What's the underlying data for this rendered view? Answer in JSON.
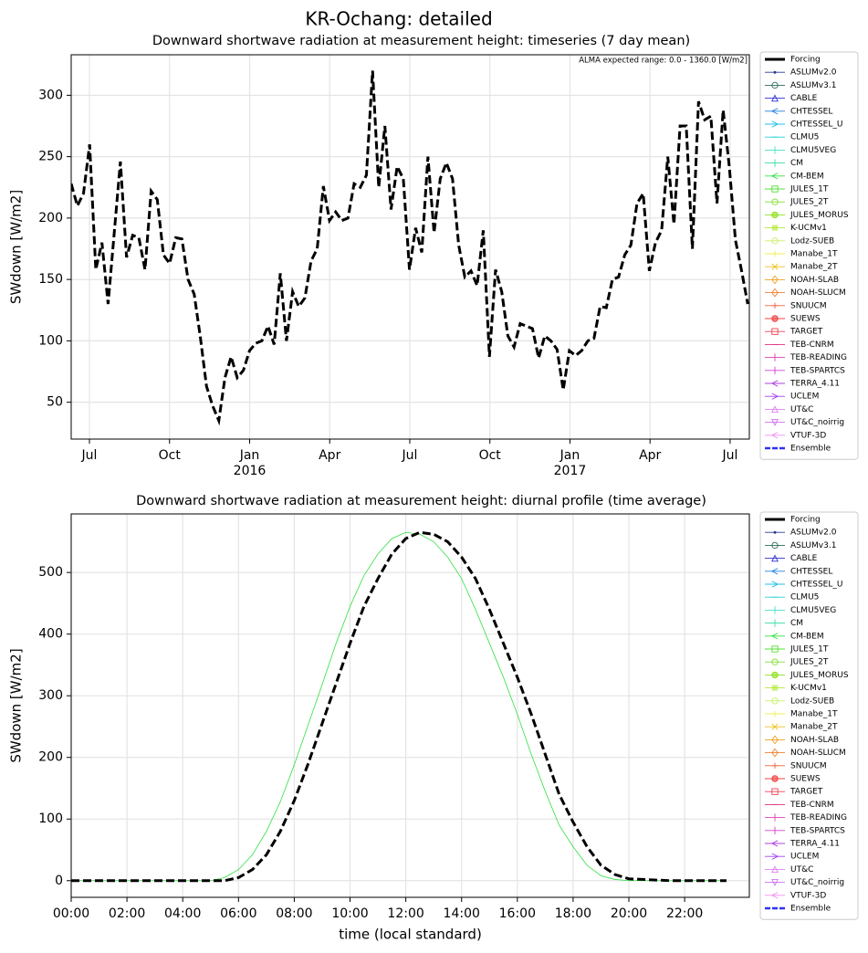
{
  "title": "KR-Ochang: detailed",
  "chart_data": [
    {
      "type": "line",
      "title": "Downward shortwave radiation at measurement height: timeseries (7 day mean)",
      "ylabel": "SWdown [W/m2]",
      "annotation": "ALMA expected range: 0.0 - 1360.0 [W/m2]",
      "x": [
        2015.443,
        2015.4622,
        2015.4814,
        2015.5006,
        2015.5198,
        2015.539,
        2015.5582,
        2015.5774,
        2015.5966,
        2015.6158,
        2015.635,
        2015.6542,
        2015.6734,
        2015.6926,
        2015.7118,
        2015.731,
        2015.7502,
        2015.7694,
        2015.7886,
        2015.8078,
        2015.827,
        2015.8462,
        2015.8654,
        2015.8846,
        2015.9038,
        2015.923,
        2015.9422,
        2015.9614,
        2015.9806,
        2015.9998,
        2016.019,
        2016.0382,
        2016.0574,
        2016.0766,
        2016.0958,
        2016.115,
        2016.1342,
        2016.1534,
        2016.1726,
        2016.1918,
        2016.211,
        2016.2302,
        2016.2494,
        2016.2686,
        2016.2878,
        2016.307,
        2016.3262,
        2016.3454,
        2016.3646,
        2016.3838,
        2016.403,
        2016.4222,
        2016.4414,
        2016.4606,
        2016.4798,
        2016.499,
        2016.5182,
        2016.5374,
        2016.5566,
        2016.5758,
        2016.595,
        2016.6142,
        2016.6334,
        2016.6526,
        2016.6718,
        2016.691,
        2016.7102,
        2016.7294,
        2016.7486,
        2016.7678,
        2016.787,
        2016.8062,
        2016.8254,
        2016.8446,
        2016.8638,
        2016.883,
        2016.9022,
        2016.9214,
        2016.9406,
        2016.9598,
        2016.979,
        2016.9982,
        2017.0174,
        2017.0366,
        2017.0558,
        2017.075,
        2017.0942,
        2017.1134,
        2017.1326,
        2017.1518,
        2017.171,
        2017.1902,
        2017.2094,
        2017.2286,
        2017.2478,
        2017.267,
        2017.2862,
        2017.3054,
        2017.3246,
        2017.3438,
        2017.363,
        2017.3822,
        2017.4014,
        2017.4206,
        2017.4398,
        2017.459,
        2017.4782,
        2017.4974,
        2017.5166,
        2017.5358,
        2017.555
      ],
      "series": [
        {
          "name": "Forcing",
          "color": "#000000",
          "style": "dashed",
          "width": 3,
          "values": [
            228,
            210,
            220,
            260,
            158,
            180,
            130,
            188,
            246,
            168,
            186,
            184,
            158,
            222,
            215,
            170,
            163,
            184,
            183,
            150,
            138,
            103,
            63,
            47,
            35,
            70,
            87,
            70,
            76,
            92,
            98,
            100,
            112,
            97,
            155,
            100,
            140,
            128,
            135,
            165,
            175,
            226,
            198,
            205,
            198,
            200,
            228,
            225,
            235,
            320,
            225,
            275,
            207,
            242,
            232,
            158,
            192,
            172,
            250,
            188,
            232,
            245,
            232,
            178,
            152,
            157,
            145,
            190,
            87,
            158,
            140,
            104,
            95,
            114,
            112,
            110,
            86,
            104,
            100,
            93,
            60,
            92,
            88,
            92,
            100,
            102,
            128,
            127,
            150,
            152,
            170,
            178,
            212,
            220,
            157,
            180,
            190,
            250,
            195,
            275,
            275,
            175,
            295,
            280,
            283,
            212,
            288,
            242,
            182,
            157,
            130
          ]
        }
      ],
      "xlim": [
        2015.443,
        2017.56
      ],
      "ylim": [
        20,
        333
      ],
      "xticks": [
        {
          "value": 2015.5,
          "label": "Jul"
        },
        {
          "value": 2015.75,
          "label": "Oct"
        },
        {
          "value": 2016,
          "label": "Jan"
        },
        {
          "value": 2016.25,
          "label": "Apr"
        },
        {
          "value": 2016.5,
          "label": "Jul"
        },
        {
          "value": 2016.75,
          "label": "Oct"
        },
        {
          "value": 2017,
          "label": "Jan"
        },
        {
          "value": 2017.25,
          "label": "Apr"
        },
        {
          "value": 2017.5,
          "label": "Jul"
        }
      ],
      "xticks_secondary": [
        2016,
        2017
      ],
      "yticks": [
        50,
        100,
        150,
        200,
        250,
        300
      ],
      "grid": true,
      "legend_position": "outside right",
      "legend": [
        {
          "name": "Forcing",
          "color": "#000000",
          "marker": "none",
          "style": "thick"
        },
        {
          "name": "ASLUMv2.0",
          "color": "#2a3a8a",
          "marker": "."
        },
        {
          "name": "ASLUMv3.1",
          "color": "#2d6a5a",
          "marker": "o"
        },
        {
          "name": "CABLE",
          "color": "#3030d0",
          "marker": "^"
        },
        {
          "name": "CHTESSEL",
          "color": "#2080e0",
          "marker": "<"
        },
        {
          "name": "CHTESSEL_U",
          "color": "#20c0e8",
          "marker": ">"
        },
        {
          "name": "CLMU5",
          "color": "#20d0d8",
          "marker": "_"
        },
        {
          "name": "CLMU5VEG",
          "color": "#40e0c8",
          "marker": "|"
        },
        {
          "name": "CM",
          "color": "#30e0a0",
          "marker": "|"
        },
        {
          "name": "CM-BEM",
          "color": "#30e040",
          "marker": "<"
        },
        {
          "name": "JULES_1T",
          "color": "#50e030",
          "marker": "s"
        },
        {
          "name": "JULES_2T",
          "color": "#80e030",
          "marker": "o"
        },
        {
          "name": "JULES_MORUS",
          "color": "#90e020",
          "marker": "O"
        },
        {
          "name": "K-UCMv1",
          "color": "#b0e830",
          "marker": "S"
        },
        {
          "name": "Lodz-SUEB",
          "color": "#c8f060",
          "marker": "o"
        },
        {
          "name": "Manabe_1T",
          "color": "#f0f050",
          "marker": "+"
        },
        {
          "name": "Manabe_2T",
          "color": "#f0c020",
          "marker": "x"
        },
        {
          "name": "NOAH-SLAB",
          "color": "#f0a020",
          "marker": "D"
        },
        {
          "name": "NOAH-SLUCM",
          "color": "#f08030",
          "marker": "D"
        },
        {
          "name": "SNUUCM",
          "color": "#f06040",
          "marker": "+"
        },
        {
          "name": "SUEWS",
          "color": "#f04040",
          "marker": "O"
        },
        {
          "name": "TARGET",
          "color": "#f04050",
          "marker": "s"
        },
        {
          "name": "TEB-CNRM",
          "color": "#e03080",
          "marker": "_"
        },
        {
          "name": "TEB-READING",
          "color": "#e040b0",
          "marker": "|"
        },
        {
          "name": "TEB-SPARTCS",
          "color": "#d040d0",
          "marker": "|"
        },
        {
          "name": "TERRA_4.11",
          "color": "#b040e0",
          "marker": "<"
        },
        {
          "name": "UCLEM",
          "color": "#a040f0",
          "marker": ">"
        },
        {
          "name": "UT&C",
          "color": "#e080f0",
          "marker": "^"
        },
        {
          "name": "UT&C_noirrig",
          "color": "#d070f0",
          "marker": "v"
        },
        {
          "name": "VTUF-3D",
          "color": "#f090f0",
          "marker": "<"
        },
        {
          "name": "Ensemble",
          "color": "#3030f0",
          "marker": "none",
          "style": "dashed"
        }
      ]
    },
    {
      "type": "line",
      "title": "Downward shortwave radiation at measurement height: diurnal profile (time average)",
      "ylabel": "SWdown [W/m2]",
      "xlabel": "time (local standard)",
      "x": [
        0,
        0.5,
        1,
        1.5,
        2,
        2.5,
        3,
        3.5,
        4,
        4.5,
        5,
        5.5,
        6,
        6.5,
        7,
        7.5,
        8,
        8.5,
        9,
        9.5,
        10,
        10.5,
        11,
        11.5,
        12,
        12.5,
        13,
        13.5,
        14,
        14.5,
        15,
        15.5,
        16,
        16.5,
        17,
        17.5,
        18,
        18.5,
        19,
        19.5,
        20,
        20.5,
        21,
        21.5,
        22,
        22.5,
        23,
        23.5
      ],
      "series": [
        {
          "name": "CM-BEM",
          "color": "#30e040",
          "style": "solid",
          "width": 0.8,
          "values": [
            0,
            0,
            0,
            0,
            0,
            0,
            0,
            0,
            0,
            0,
            0,
            5,
            18,
            42,
            80,
            128,
            188,
            253,
            318,
            385,
            445,
            495,
            530,
            555,
            565,
            562,
            550,
            525,
            490,
            440,
            385,
            330,
            270,
            205,
            145,
            90,
            55,
            25,
            8,
            2,
            0,
            0,
            0,
            0,
            0,
            0,
            0,
            0
          ]
        },
        {
          "name": "Forcing",
          "color": "#000000",
          "style": "dashed",
          "width": 3,
          "values": [
            0,
            0,
            0,
            0,
            0,
            0,
            0,
            0,
            0,
            0,
            0,
            0,
            5,
            18,
            42,
            80,
            130,
            190,
            255,
            320,
            385,
            445,
            490,
            530,
            555,
            565,
            562,
            550,
            525,
            490,
            440,
            385,
            330,
            270,
            205,
            140,
            95,
            55,
            25,
            10,
            3,
            2,
            1,
            0,
            0,
            0,
            0,
            0
          ]
        }
      ],
      "xlim": [
        0,
        24.32
      ],
      "ylim": [
        -27,
        595
      ],
      "xticks": [
        {
          "value": 0,
          "label": "00:00"
        },
        {
          "value": 2,
          "label": "02:00"
        },
        {
          "value": 4,
          "label": "04:00"
        },
        {
          "value": 6,
          "label": "06:00"
        },
        {
          "value": 8,
          "label": "08:00"
        },
        {
          "value": 10,
          "label": "10:00"
        },
        {
          "value": 12,
          "label": "12:00"
        },
        {
          "value": 14,
          "label": "14:00"
        },
        {
          "value": 16,
          "label": "16:00"
        },
        {
          "value": 18,
          "label": "18:00"
        },
        {
          "value": 20,
          "label": "20:00"
        },
        {
          "value": 22,
          "label": "22:00"
        }
      ],
      "yticks": [
        0,
        100,
        200,
        300,
        400,
        500
      ],
      "grid": true,
      "legend_position": "outside right",
      "legend": [
        {
          "name": "Forcing",
          "color": "#000000",
          "marker": "none",
          "style": "thick"
        },
        {
          "name": "ASLUMv2.0",
          "color": "#2a3a8a",
          "marker": "."
        },
        {
          "name": "ASLUMv3.1",
          "color": "#2d6a5a",
          "marker": "o"
        },
        {
          "name": "CABLE",
          "color": "#3030d0",
          "marker": "^"
        },
        {
          "name": "CHTESSEL",
          "color": "#2080e0",
          "marker": "<"
        },
        {
          "name": "CHTESSEL_U",
          "color": "#20c0e8",
          "marker": ">"
        },
        {
          "name": "CLMU5",
          "color": "#20d0d8",
          "marker": "_"
        },
        {
          "name": "CLMU5VEG",
          "color": "#40e0c8",
          "marker": "|"
        },
        {
          "name": "CM",
          "color": "#30e0a0",
          "marker": "|"
        },
        {
          "name": "CM-BEM",
          "color": "#30e040",
          "marker": "<"
        },
        {
          "name": "JULES_1T",
          "color": "#50e030",
          "marker": "s"
        },
        {
          "name": "JULES_2T",
          "color": "#80e030",
          "marker": "o"
        },
        {
          "name": "JULES_MORUS",
          "color": "#90e020",
          "marker": "O"
        },
        {
          "name": "K-UCMv1",
          "color": "#b0e830",
          "marker": "S"
        },
        {
          "name": "Lodz-SUEB",
          "color": "#c8f060",
          "marker": "o"
        },
        {
          "name": "Manabe_1T",
          "color": "#f0f050",
          "marker": "+"
        },
        {
          "name": "Manabe_2T",
          "color": "#f0c020",
          "marker": "x"
        },
        {
          "name": "NOAH-SLAB",
          "color": "#f0a020",
          "marker": "D"
        },
        {
          "name": "NOAH-SLUCM",
          "color": "#f08030",
          "marker": "D"
        },
        {
          "name": "SNUUCM",
          "color": "#f06040",
          "marker": "+"
        },
        {
          "name": "SUEWS",
          "color": "#f04040",
          "marker": "O"
        },
        {
          "name": "TARGET",
          "color": "#f04050",
          "marker": "s"
        },
        {
          "name": "TEB-CNRM",
          "color": "#e03080",
          "marker": "_"
        },
        {
          "name": "TEB-READING",
          "color": "#e040b0",
          "marker": "|"
        },
        {
          "name": "TEB-SPARTCS",
          "color": "#d040d0",
          "marker": "|"
        },
        {
          "name": "TERRA_4.11",
          "color": "#b040e0",
          "marker": "<"
        },
        {
          "name": "UCLEM",
          "color": "#a040f0",
          "marker": ">"
        },
        {
          "name": "UT&C",
          "color": "#e080f0",
          "marker": "^"
        },
        {
          "name": "UT&C_noirrig",
          "color": "#d070f0",
          "marker": "v"
        },
        {
          "name": "VTUF-3D",
          "color": "#f090f0",
          "marker": "<"
        },
        {
          "name": "Ensemble",
          "color": "#3030f0",
          "marker": "none",
          "style": "dashed"
        }
      ]
    }
  ]
}
